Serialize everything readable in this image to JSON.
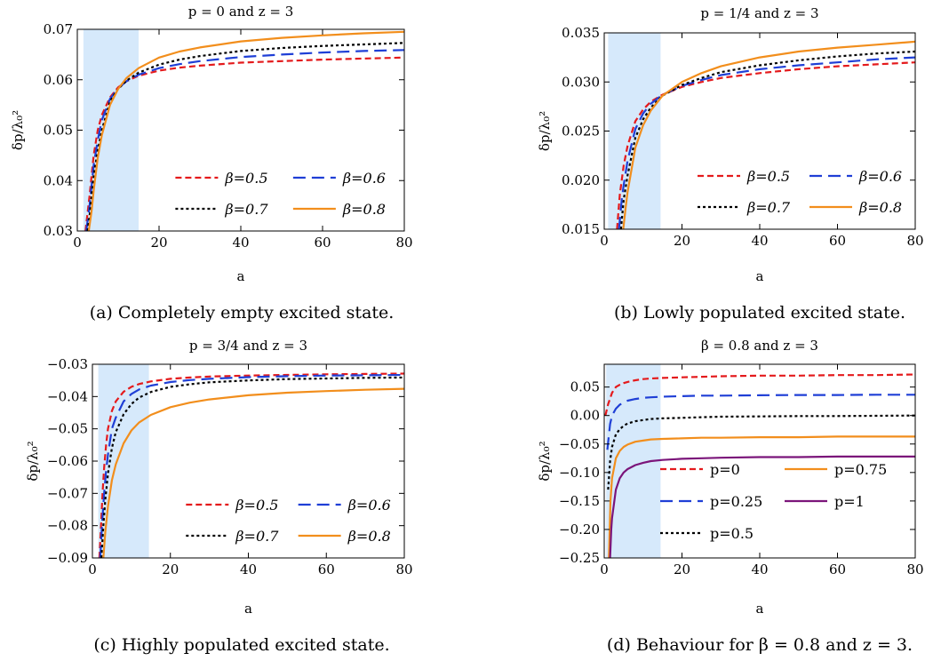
{
  "chart_data": [
    {
      "type": "line",
      "title": "p = 0 and z = 3",
      "xlabel": "a",
      "ylabel": "δp/λ₀²",
      "xlim": [
        0,
        80
      ],
      "ylim": [
        0.03,
        0.07
      ],
      "xticks": [
        0,
        20,
        40,
        60,
        80
      ],
      "yticks": [
        0.03,
        0.04,
        0.05,
        0.06,
        0.07
      ],
      "ytick_labels": [
        "0.03",
        "0.04",
        "0.05",
        "0.06",
        "0.07"
      ],
      "shaded_region": [
        1.5,
        15
      ],
      "legend_position": "lower-right",
      "caption": "(a) Completely empty excited state.",
      "series": [
        {
          "name": "β=0.5",
          "color": "#e41a1c",
          "dash": "short",
          "x": [
            2,
            3,
            4,
            5,
            6,
            8,
            10,
            12,
            15,
            20,
            25,
            30,
            40,
            50,
            60,
            70,
            80
          ],
          "y": [
            0.03,
            0.037,
            0.045,
            0.05,
            0.053,
            0.0565,
            0.0585,
            0.0597,
            0.0608,
            0.0618,
            0.0624,
            0.0628,
            0.0634,
            0.0637,
            0.064,
            0.0642,
            0.0644
          ]
        },
        {
          "name": "β=0.6",
          "color": "#1f3fd6",
          "dash": "long",
          "x": [
            2.2,
            3,
            4,
            5,
            6,
            8,
            10,
            12,
            15,
            20,
            25,
            30,
            40,
            50,
            60,
            70,
            80
          ],
          "y": [
            0.03,
            0.035,
            0.043,
            0.048,
            0.052,
            0.0562,
            0.0583,
            0.0597,
            0.061,
            0.0623,
            0.0631,
            0.0637,
            0.0645,
            0.065,
            0.0654,
            0.0657,
            0.0659
          ]
        },
        {
          "name": "β=0.7",
          "color": "#000000",
          "dash": "dot",
          "x": [
            2.5,
            3,
            4,
            5,
            6,
            8,
            10,
            12,
            15,
            20,
            25,
            30,
            40,
            50,
            60,
            70,
            80
          ],
          "y": [
            0.03,
            0.033,
            0.041,
            0.046,
            0.05,
            0.0557,
            0.0582,
            0.0598,
            0.0614,
            0.063,
            0.064,
            0.0647,
            0.0657,
            0.0663,
            0.0667,
            0.067,
            0.0673
          ]
        },
        {
          "name": "β=0.8",
          "color": "#f28e1c",
          "dash": "solid",
          "x": [
            2.8,
            3.5,
            4,
            5,
            6,
            8,
            10,
            12,
            15,
            20,
            25,
            30,
            40,
            50,
            60,
            70,
            80
          ],
          "y": [
            0.03,
            0.034,
            0.038,
            0.0445,
            0.049,
            0.055,
            0.0582,
            0.0603,
            0.0623,
            0.0644,
            0.0656,
            0.0664,
            0.0676,
            0.0683,
            0.0688,
            0.0692,
            0.0695
          ]
        }
      ]
    },
    {
      "type": "line",
      "title": "p = 1/4 and z = 3",
      "xlabel": "a",
      "ylabel": "δp/λ₀²",
      "xlim": [
        0,
        80
      ],
      "ylim": [
        0.015,
        0.035
      ],
      "xticks": [
        0,
        20,
        40,
        60,
        80
      ],
      "yticks": [
        0.015,
        0.02,
        0.025,
        0.03,
        0.035
      ],
      "ytick_labels": [
        "0.015",
        "0.020",
        "0.025",
        "0.030",
        "0.035"
      ],
      "shaded_region": [
        1,
        14.5
      ],
      "legend_position": "lower-right",
      "caption": "(b) Lowly populated excited state.",
      "series": [
        {
          "name": "β=0.5",
          "color": "#e41a1c",
          "dash": "short",
          "x": [
            3.3,
            4,
            5,
            6,
            8,
            10,
            12,
            15,
            20,
            25,
            30,
            40,
            50,
            60,
            70,
            80
          ],
          "y": [
            0.015,
            0.0185,
            0.0215,
            0.0235,
            0.026,
            0.0272,
            0.028,
            0.0287,
            0.0295,
            0.03,
            0.0304,
            0.0309,
            0.0313,
            0.0316,
            0.0318,
            0.032
          ]
        },
        {
          "name": "β=0.6",
          "color": "#1f3fd6",
          "dash": "long",
          "x": [
            3.8,
            4.5,
            5,
            6,
            8,
            10,
            12,
            15,
            20,
            25,
            30,
            40,
            50,
            60,
            70,
            80
          ],
          "y": [
            0.015,
            0.018,
            0.0195,
            0.022,
            0.0252,
            0.0268,
            0.0278,
            0.0287,
            0.0296,
            0.0302,
            0.0307,
            0.0313,
            0.0317,
            0.032,
            0.0323,
            0.0325
          ]
        },
        {
          "name": "β=0.7",
          "color": "#000000",
          "dash": "dot",
          "x": [
            4.3,
            5,
            6,
            8,
            10,
            12,
            15,
            20,
            25,
            30,
            40,
            50,
            60,
            70,
            80
          ],
          "y": [
            0.015,
            0.018,
            0.0205,
            0.0243,
            0.0262,
            0.0274,
            0.0286,
            0.0297,
            0.0304,
            0.031,
            0.0317,
            0.0322,
            0.0326,
            0.0329,
            0.0331
          ]
        },
        {
          "name": "β=0.8",
          "color": "#f28e1c",
          "dash": "solid",
          "x": [
            4.9,
            5.5,
            6,
            8,
            10,
            12,
            15,
            20,
            25,
            30,
            40,
            50,
            60,
            70,
            80
          ],
          "y": [
            0.015,
            0.0172,
            0.0188,
            0.0233,
            0.0256,
            0.0271,
            0.0286,
            0.03,
            0.0309,
            0.0316,
            0.0325,
            0.0331,
            0.0335,
            0.0338,
            0.0341
          ]
        }
      ]
    },
    {
      "type": "line",
      "title": "p = 3/4 and z = 3",
      "xlabel": "a",
      "ylabel": "δp/λ₀²",
      "xlim": [
        0,
        80
      ],
      "ylim": [
        -0.09,
        -0.03
      ],
      "xticks": [
        0,
        20,
        40,
        60,
        80
      ],
      "yticks": [
        -0.09,
        -0.08,
        -0.07,
        -0.06,
        -0.05,
        -0.04,
        -0.03
      ],
      "ytick_labels": [
        "−0.09",
        "−0.08",
        "−0.07",
        "−0.06",
        "−0.05",
        "−0.04",
        "−0.03"
      ],
      "shaded_region": [
        1.5,
        14.5
      ],
      "legend_position": "lower-right",
      "caption": "(c) Highly populated excited state.",
      "series": [
        {
          "name": "β=0.5",
          "color": "#e41a1c",
          "dash": "short",
          "x": [
            1.8,
            2.2,
            2.6,
            3,
            3.5,
            4,
            5,
            6,
            8,
            10,
            12,
            15,
            20,
            25,
            30,
            40,
            50,
            60,
            70,
            80
          ],
          "y": [
            -0.09,
            -0.08,
            -0.07,
            -0.062,
            -0.055,
            -0.05,
            -0.0445,
            -0.0415,
            -0.0385,
            -0.037,
            -0.0361,
            -0.0353,
            -0.0345,
            -0.0341,
            -0.0338,
            -0.0335,
            -0.0333,
            -0.0331,
            -0.033,
            -0.0329
          ]
        },
        {
          "name": "β=0.6",
          "color": "#1f3fd6",
          "dash": "long",
          "x": [
            2,
            2.5,
            3,
            3.5,
            4,
            5,
            6,
            8,
            10,
            12,
            15,
            20,
            25,
            30,
            40,
            50,
            60,
            70,
            80
          ],
          "y": [
            -0.09,
            -0.079,
            -0.07,
            -0.063,
            -0.058,
            -0.05,
            -0.0465,
            -0.0415,
            -0.0392,
            -0.0378,
            -0.0366,
            -0.0355,
            -0.0349,
            -0.0345,
            -0.034,
            -0.0337,
            -0.0335,
            -0.0334,
            -0.0333
          ]
        },
        {
          "name": "β=0.7",
          "color": "#000000",
          "dash": "dot",
          "x": [
            2.3,
            2.8,
            3.3,
            4,
            5,
            6,
            8,
            10,
            12,
            15,
            20,
            25,
            30,
            40,
            50,
            60,
            70,
            80
          ],
          "y": [
            -0.09,
            -0.08,
            -0.072,
            -0.064,
            -0.056,
            -0.051,
            -0.0455,
            -0.0423,
            -0.0403,
            -0.0386,
            -0.037,
            -0.0362,
            -0.0356,
            -0.035,
            -0.0346,
            -0.0344,
            -0.0342,
            -0.0341
          ]
        },
        {
          "name": "β=0.8",
          "color": "#f28e1c",
          "dash": "solid",
          "x": [
            2.8,
            3.3,
            4,
            5,
            6,
            8,
            10,
            12,
            15,
            20,
            25,
            30,
            40,
            50,
            60,
            70,
            80
          ],
          "y": [
            -0.09,
            -0.082,
            -0.074,
            -0.066,
            -0.061,
            -0.0545,
            -0.0505,
            -0.048,
            -0.0457,
            -0.0433,
            -0.0419,
            -0.0409,
            -0.0396,
            -0.0388,
            -0.0383,
            -0.0379,
            -0.0376
          ]
        }
      ]
    },
    {
      "type": "line",
      "title": "β = 0.8 and z = 3",
      "xlabel": "a",
      "ylabel": "δp/λ₀²",
      "xlim": [
        0,
        80
      ],
      "ylim": [
        -0.25,
        0.09
      ],
      "xticks": [
        0,
        20,
        40,
        60,
        80
      ],
      "yticks": [
        -0.25,
        -0.2,
        -0.15,
        -0.1,
        -0.05,
        0.0,
        0.05
      ],
      "ytick_labels": [
        "−0.25",
        "−0.20",
        "−0.15",
        "−0.10",
        "−0.05",
        "0.00",
        "0.05"
      ],
      "shaded_region": [
        0.5,
        14.5
      ],
      "legend_position": "lower-center",
      "caption": "(d) Behaviour for β = 0.8 and z = 3.",
      "series": [
        {
          "name": "p=0",
          "color": "#e41a1c",
          "dash": "short",
          "x": [
            0.3,
            1,
            2,
            3,
            4,
            5,
            6,
            8,
            10,
            12,
            15,
            20,
            25,
            30,
            40,
            50,
            60,
            70,
            80
          ],
          "y": [
            0.0,
            0.02,
            0.04,
            0.05,
            0.054,
            0.057,
            0.059,
            0.062,
            0.064,
            0.065,
            0.066,
            0.067,
            0.068,
            0.069,
            0.07,
            0.07,
            0.071,
            0.071,
            0.072
          ]
        },
        {
          "name": "p=0.25",
          "color": "#1f3fd6",
          "dash": "long",
          "x": [
            0.8,
            1.5,
            2,
            3,
            4,
            5,
            6,
            8,
            10,
            12,
            15,
            20,
            25,
            30,
            40,
            50,
            60,
            70,
            80
          ],
          "y": [
            -0.06,
            -0.015,
            0.0,
            0.012,
            0.019,
            0.023,
            0.026,
            0.029,
            0.031,
            0.032,
            0.033,
            0.034,
            0.035,
            0.035,
            0.0355,
            0.036,
            0.036,
            0.0365,
            0.0365
          ]
        },
        {
          "name": "p=0.5",
          "color": "#000000",
          "dash": "dot",
          "x": [
            1.0,
            1.5,
            2,
            3,
            4,
            5,
            6,
            8,
            10,
            12,
            15,
            20,
            25,
            30,
            40,
            50,
            60,
            70,
            80
          ],
          "y": [
            -0.13,
            -0.08,
            -0.055,
            -0.033,
            -0.024,
            -0.018,
            -0.014,
            -0.01,
            -0.008,
            -0.006,
            -0.005,
            -0.004,
            -0.003,
            -0.002,
            -0.0015,
            -0.001,
            -0.001,
            -0.0005,
            0.0
          ]
        },
        {
          "name": "p=0.75",
          "color": "#f28e1c",
          "dash": "solid",
          "x": [
            1.2,
            1.6,
            2,
            3,
            4,
            5,
            6,
            8,
            10,
            12,
            15,
            20,
            25,
            30,
            40,
            50,
            60,
            70,
            80
          ],
          "y": [
            -0.25,
            -0.15,
            -0.11,
            -0.075,
            -0.062,
            -0.055,
            -0.051,
            -0.046,
            -0.044,
            -0.042,
            -0.041,
            -0.04,
            -0.039,
            -0.039,
            -0.038,
            -0.038,
            -0.037,
            -0.037,
            -0.037
          ]
        },
        {
          "name": "p=1",
          "color": "#7b157a",
          "dash": "solid",
          "x": [
            1.5,
            1.8,
            2,
            3,
            4,
            5,
            6,
            8,
            10,
            12,
            15,
            20,
            25,
            30,
            40,
            50,
            60,
            70,
            80
          ],
          "y": [
            -0.25,
            -0.2,
            -0.18,
            -0.13,
            -0.11,
            -0.1,
            -0.094,
            -0.087,
            -0.083,
            -0.08,
            -0.078,
            -0.076,
            -0.075,
            -0.074,
            -0.073,
            -0.073,
            -0.072,
            -0.072,
            -0.072
          ]
        }
      ]
    }
  ]
}
